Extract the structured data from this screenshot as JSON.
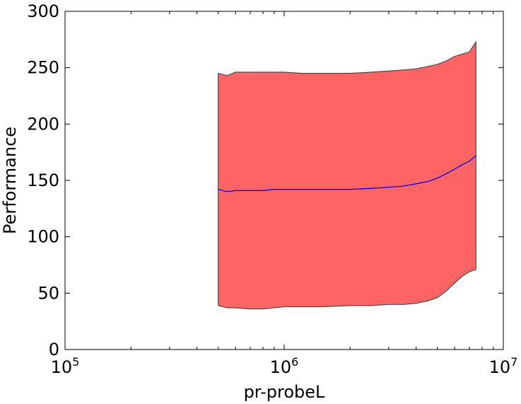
{
  "chart_data": {
    "type": "area",
    "xlabel": "pr-probeL",
    "ylabel": "Performance",
    "xscale": "log",
    "xlim": [
      100000,
      10000000
    ],
    "ylim": [
      0,
      300
    ],
    "grid": false,
    "x_ticks": [
      {
        "value": 100000,
        "base": "10",
        "exp": "5"
      },
      {
        "value": 1000000,
        "base": "10",
        "exp": "6"
      },
      {
        "value": 10000000,
        "base": "10",
        "exp": "7"
      }
    ],
    "y_ticks": [
      {
        "value": 0,
        "label": "0"
      },
      {
        "value": 50,
        "label": "50"
      },
      {
        "value": 100,
        "label": "100"
      },
      {
        "value": 150,
        "label": "150"
      },
      {
        "value": 200,
        "label": "200"
      },
      {
        "value": 250,
        "label": "250"
      },
      {
        "value": 300,
        "label": "300"
      }
    ],
    "colors": {
      "band_fill": "#ff6464",
      "band_edge": "#4a4a4a",
      "mean_line": "#0000ff"
    },
    "x": [
      500000,
      550000,
      600000,
      700000,
      800000,
      900000,
      1000000,
      1200000,
      1500000,
      2000000,
      2500000,
      3000000,
      3500000,
      4000000,
      4500000,
      5000000,
      5500000,
      6000000,
      6500000,
      7000000,
      7500000
    ],
    "upper": [
      245,
      243,
      246,
      246,
      246,
      246,
      246,
      245,
      245,
      245,
      246,
      247,
      248,
      249,
      251,
      253,
      256,
      260,
      262,
      264,
      273
    ],
    "mean": [
      142,
      140,
      141,
      141,
      141,
      142,
      142,
      142,
      142,
      142,
      143,
      144,
      145,
      147,
      149,
      152,
      156,
      160,
      164,
      167,
      172
    ],
    "lower": [
      39,
      37,
      37,
      36,
      36,
      37,
      38,
      38,
      38,
      39,
      39,
      40,
      40,
      41,
      43,
      46,
      52,
      59,
      65,
      69,
      71
    ]
  }
}
